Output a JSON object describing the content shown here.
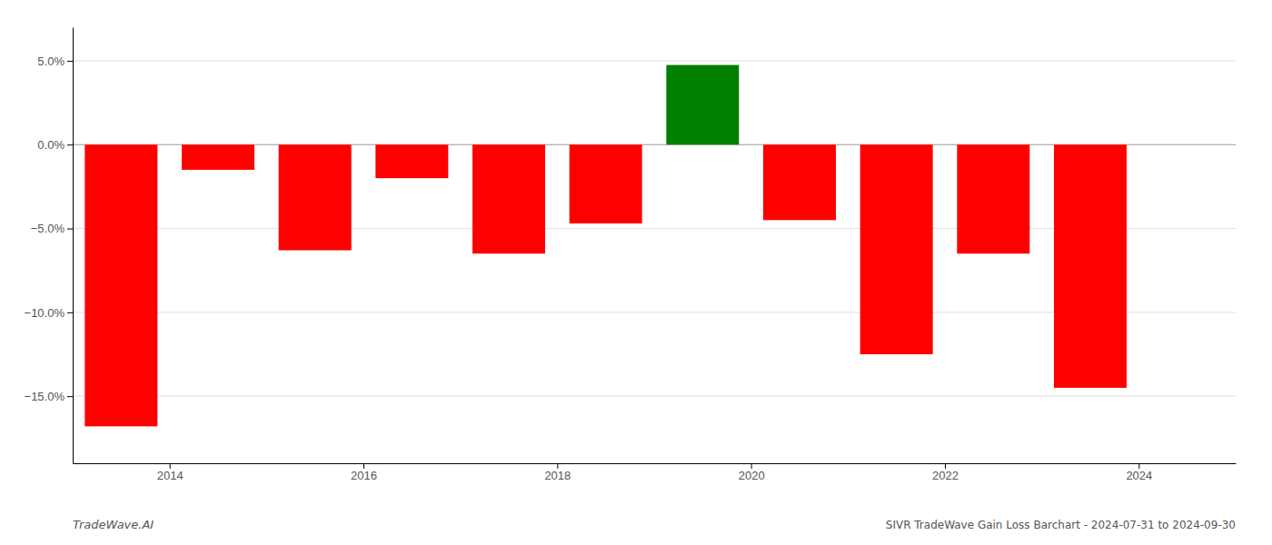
{
  "chart_data": {
    "type": "bar",
    "title": "SIVR TradeWave Gain Loss Barchart - 2024-07-31 to 2024-09-30",
    "annotations": [
      "TradeWave.AI"
    ],
    "x": [
      2013.5,
      2014.5,
      2015.5,
      2016.5,
      2017.5,
      2018.5,
      2019.5,
      2020.5,
      2021.5,
      2022.5,
      2023.5
    ],
    "values": [
      -16.8,
      -1.5,
      -6.3,
      -2.0,
      -6.5,
      -4.7,
      4.75,
      -4.5,
      -12.5,
      -6.5,
      -14.5
    ],
    "colors": [
      "#ff0000",
      "#ff0000",
      "#ff0000",
      "#ff0000",
      "#ff0000",
      "#ff0000",
      "#008000",
      "#ff0000",
      "#ff0000",
      "#ff0000",
      "#ff0000"
    ],
    "xlim": [
      2013,
      2025
    ],
    "xticks": [
      2014,
      2016,
      2018,
      2020,
      2022,
      2024
    ],
    "ylim": [
      -19,
      7
    ],
    "yticks": [
      {
        "value": -15.0,
        "label": "−15.0%"
      },
      {
        "value": -10.0,
        "label": "−10.0%"
      },
      {
        "value": -5.0,
        "label": "−5.0%"
      },
      {
        "value": 0.0,
        "label": "0.0%"
      },
      {
        "value": 5.0,
        "label": "5.0%"
      }
    ],
    "grid": true
  }
}
